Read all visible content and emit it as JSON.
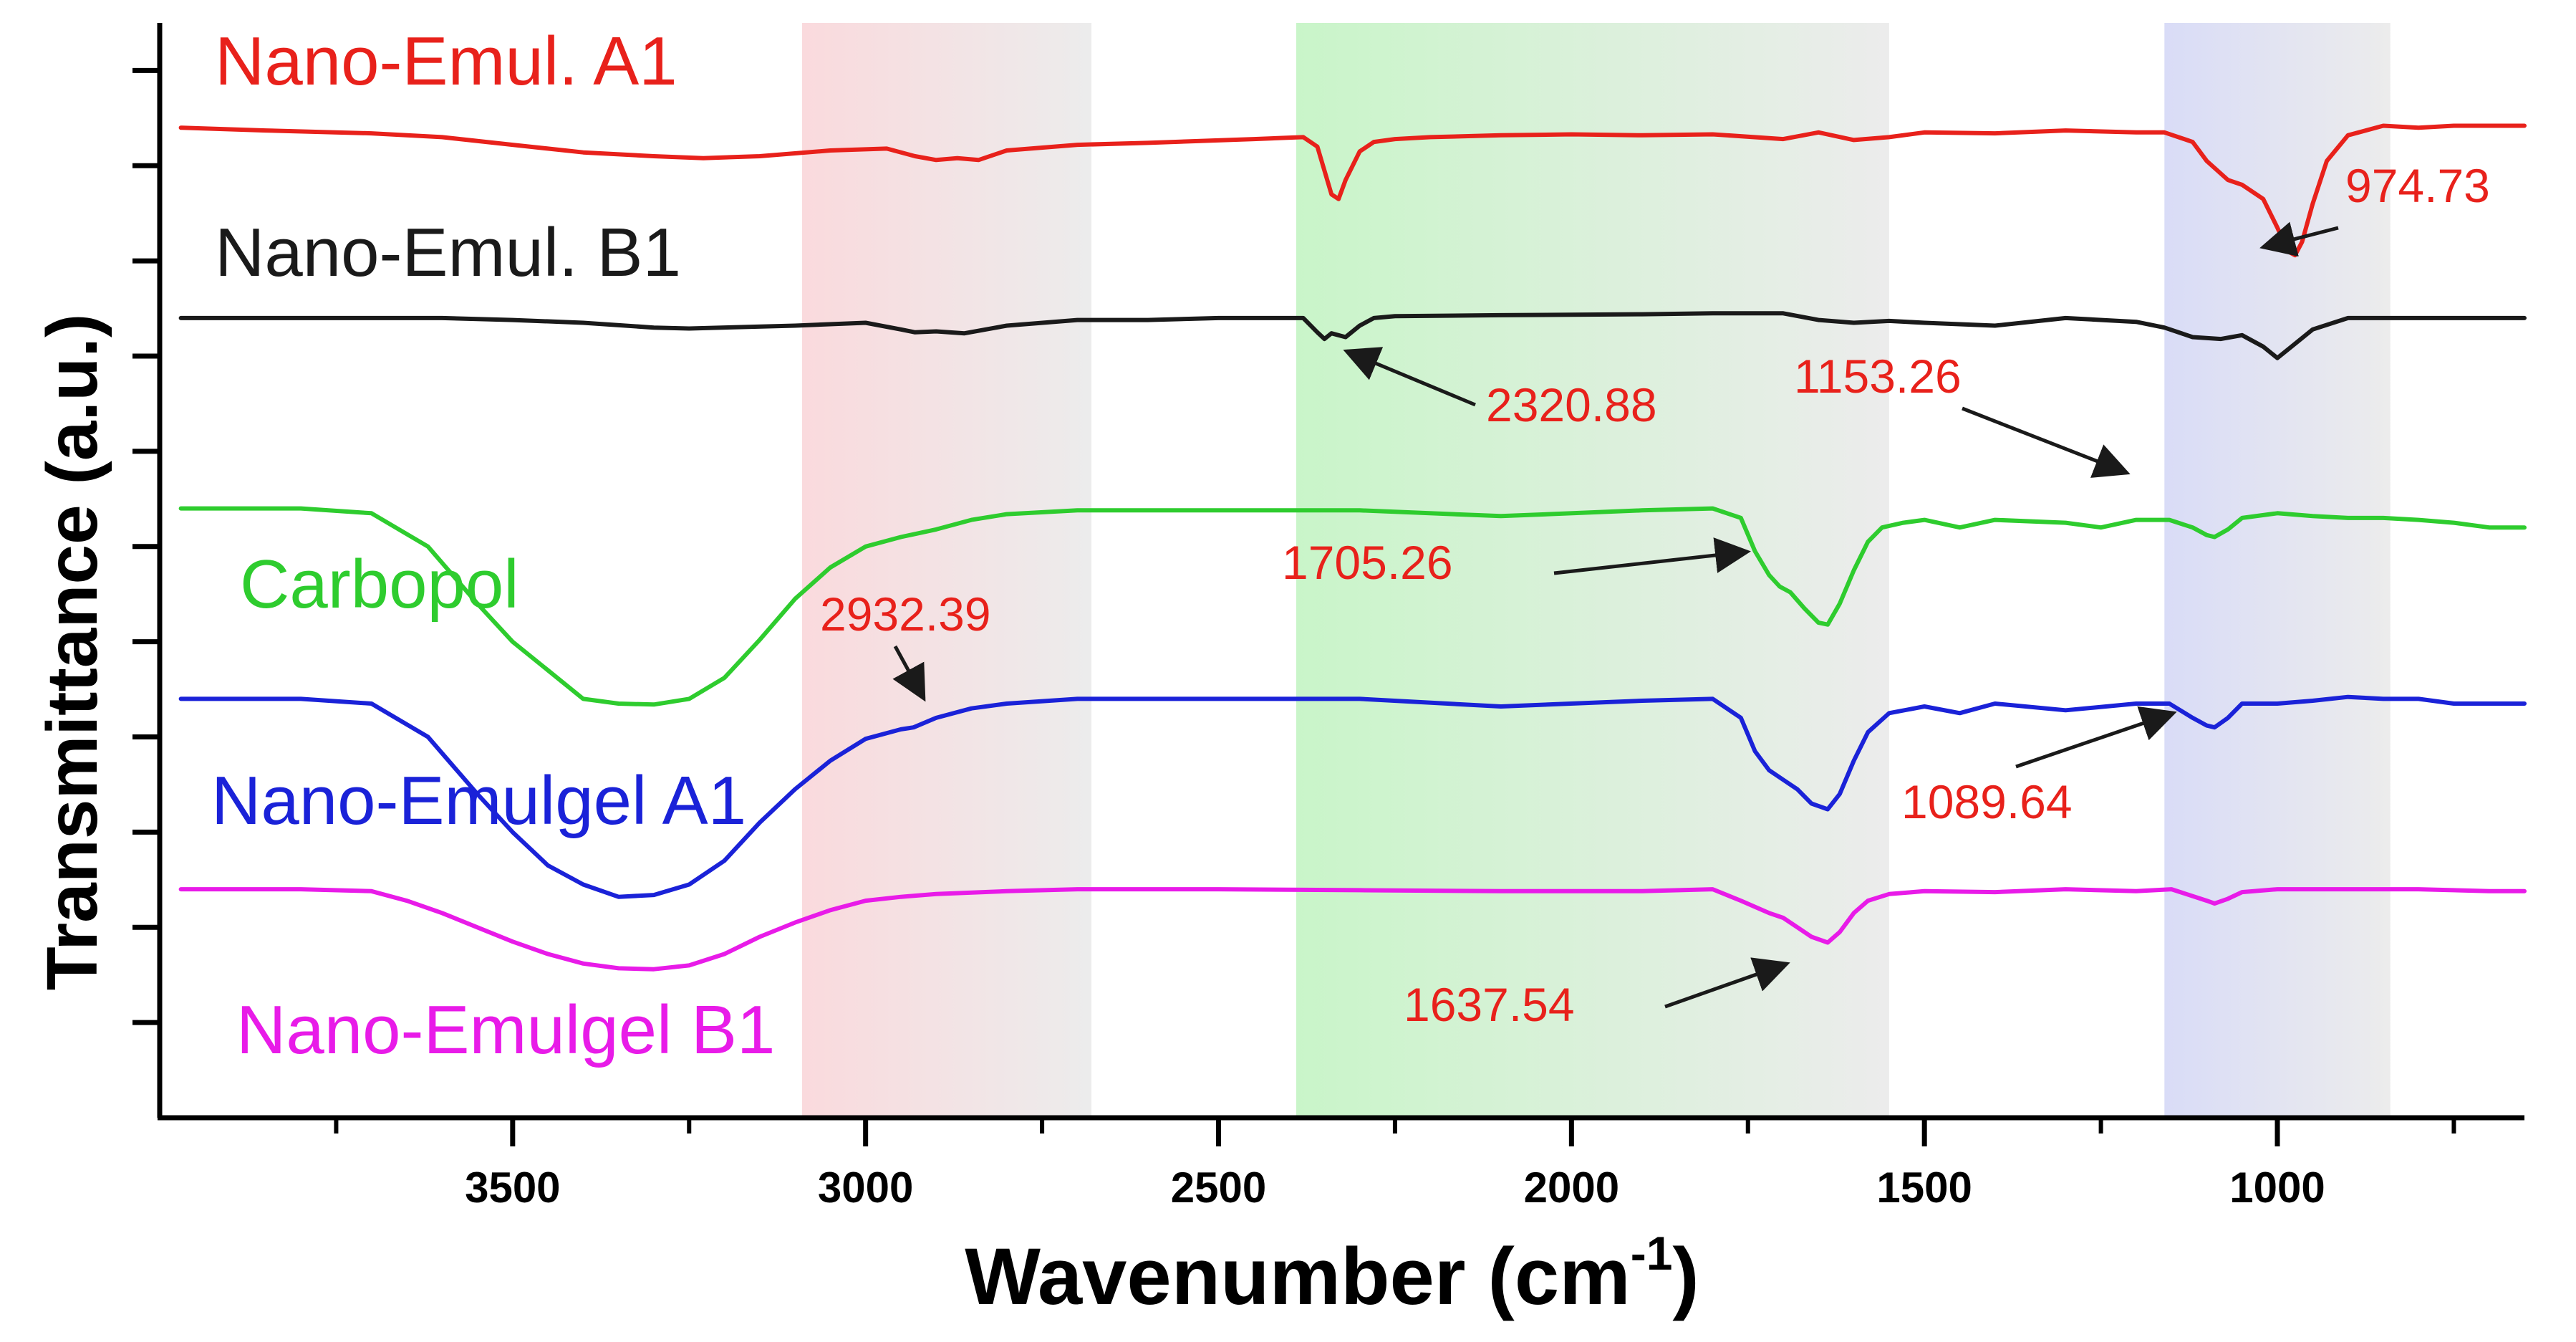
{
  "chart_data": {
    "type": "line",
    "title": "",
    "xlabel": "Wavenumber (cm",
    "xlabel_sup": "-1",
    "xlabel_close": ")",
    "ylabel": "Transmittance (a.u.)",
    "x_reversed": true,
    "xlim": [
      4000,
      650
    ],
    "xticks": [
      3500,
      3000,
      2500,
      2000,
      1500,
      1000
    ],
    "xtick_labels": [
      "3500",
      "3000",
      "2500",
      "2000",
      "1500",
      "1000"
    ],
    "y_ticks_labeled": false,
    "shaded_regions": [
      {
        "from": 3090,
        "to": 2680,
        "color_start": "#fadadd",
        "color_end": "#ececec"
      },
      {
        "from": 2390,
        "to": 1550,
        "color_start": "#c9f5c9",
        "color_end": "#ececec"
      },
      {
        "from": 1160,
        "to": 840,
        "color_start": "#d9dcf7",
        "color_end": "#ececec"
      }
    ],
    "series": [
      {
        "name": "Nano-Emul. A1",
        "color": "#e8211b",
        "offset": 10.4,
        "x": [
          3970,
          3850,
          3700,
          3600,
          3500,
          3400,
          3300,
          3230,
          3150,
          3050,
          2970,
          2930,
          2900,
          2870,
          2840,
          2800,
          2700,
          2600,
          2450,
          2380,
          2360,
          2340,
          2330,
          2320,
          2300,
          2280,
          2250,
          2200,
          2100,
          2000,
          1900,
          1800,
          1700,
          1650,
          1600,
          1550,
          1500,
          1400,
          1300,
          1200,
          1160,
          1120,
          1100,
          1070,
          1050,
          1020,
          1000,
          985,
          975,
          965,
          950,
          930,
          900,
          850,
          800,
          750,
          700,
          650
        ],
        "y": [
          0,
          -0.03,
          -0.06,
          -0.1,
          -0.18,
          -0.26,
          -0.3,
          -0.32,
          -0.3,
          -0.24,
          -0.22,
          -0.3,
          -0.34,
          -0.32,
          -0.34,
          -0.24,
          -0.18,
          -0.16,
          -0.12,
          -0.1,
          -0.2,
          -0.7,
          -0.75,
          -0.55,
          -0.25,
          -0.15,
          -0.12,
          -0.1,
          -0.08,
          -0.07,
          -0.08,
          -0.07,
          -0.12,
          -0.05,
          -0.13,
          -0.1,
          -0.05,
          -0.06,
          -0.03,
          -0.05,
          -0.05,
          -0.15,
          -0.35,
          -0.55,
          -0.6,
          -0.75,
          -1.05,
          -1.3,
          -1.34,
          -1.2,
          -0.8,
          -0.35,
          -0.08,
          0.02,
          0.0,
          0.02,
          0.02,
          0.02
        ]
      },
      {
        "name": "Nano-Emul. B1",
        "color": "#1a1a1a",
        "offset": 8.4,
        "x": [
          3970,
          3800,
          3600,
          3500,
          3400,
          3300,
          3250,
          3100,
          3000,
          2950,
          2930,
          2900,
          2860,
          2800,
          2700,
          2600,
          2500,
          2400,
          2380,
          2360,
          2350,
          2340,
          2320,
          2300,
          2280,
          2250,
          2100,
          1900,
          1800,
          1700,
          1650,
          1600,
          1550,
          1500,
          1400,
          1300,
          1200,
          1160,
          1120,
          1080,
          1050,
          1020,
          1000,
          980,
          950,
          900,
          800,
          700,
          650
        ],
        "y": [
          0,
          0.0,
          0.0,
          -0.02,
          -0.05,
          -0.1,
          -0.11,
          -0.08,
          -0.05,
          -0.12,
          -0.15,
          -0.14,
          -0.16,
          -0.08,
          -0.02,
          -0.02,
          0.0,
          0.0,
          0.0,
          -0.15,
          -0.22,
          -0.16,
          -0.2,
          -0.08,
          0.0,
          0.02,
          0.03,
          0.04,
          0.05,
          0.05,
          -0.02,
          -0.05,
          -0.03,
          -0.05,
          -0.08,
          0.0,
          -0.04,
          -0.1,
          -0.2,
          -0.22,
          -0.18,
          -0.3,
          -0.42,
          -0.3,
          -0.12,
          0.0,
          0.0,
          0.0,
          0.0
        ]
      },
      {
        "name": "Carbopol",
        "color": "#2ecc2e",
        "offset": 6.4,
        "x": [
          3970,
          3800,
          3700,
          3620,
          3550,
          3500,
          3450,
          3400,
          3350,
          3300,
          3250,
          3200,
          3150,
          3100,
          3050,
          3000,
          2950,
          2900,
          2850,
          2800,
          2700,
          2500,
          2300,
          2100,
          1900,
          1800,
          1760,
          1740,
          1720,
          1705,
          1690,
          1670,
          1650,
          1637,
          1620,
          1600,
          1580,
          1560,
          1530,
          1500,
          1450,
          1400,
          1300,
          1250,
          1200,
          1153,
          1120,
          1100,
          1089,
          1070,
          1050,
          1000,
          950,
          900,
          850,
          800,
          750,
          700,
          650
        ],
        "y": [
          0,
          0,
          -0.05,
          -0.4,
          -1.0,
          -1.4,
          -1.7,
          -2.0,
          -2.05,
          -2.06,
          -2.0,
          -1.78,
          -1.38,
          -0.95,
          -0.62,
          -0.4,
          -0.3,
          -0.22,
          -0.12,
          -0.06,
          -0.02,
          -0.02,
          -0.02,
          -0.08,
          -0.02,
          0.0,
          -0.1,
          -0.45,
          -0.7,
          -0.82,
          -0.88,
          -1.05,
          -1.2,
          -1.22,
          -1.0,
          -0.65,
          -0.35,
          -0.2,
          -0.15,
          -0.12,
          -0.2,
          -0.12,
          -0.15,
          -0.2,
          -0.12,
          -0.12,
          -0.2,
          -0.28,
          -0.3,
          -0.22,
          -0.1,
          -0.05,
          -0.08,
          -0.1,
          -0.1,
          -0.12,
          -0.15,
          -0.2,
          -0.2
        ]
      },
      {
        "name": "Nano-Emulgel A1",
        "color": "#1a22d8",
        "offset": 4.4,
        "x": [
          3970,
          3800,
          3700,
          3620,
          3550,
          3500,
          3450,
          3400,
          3350,
          3300,
          3250,
          3200,
          3150,
          3100,
          3050,
          3000,
          2950,
          2932,
          2900,
          2850,
          2800,
          2700,
          2500,
          2300,
          2100,
          1900,
          1800,
          1760,
          1740,
          1720,
          1700,
          1680,
          1660,
          1637,
          1620,
          1600,
          1580,
          1550,
          1500,
          1450,
          1400,
          1300,
          1200,
          1153,
          1120,
          1100,
          1089,
          1070,
          1050,
          1000,
          950,
          900,
          850,
          800,
          750,
          700,
          650
        ],
        "y": [
          0,
          0,
          -0.05,
          -0.4,
          -1.0,
          -1.4,
          -1.75,
          -1.95,
          -2.08,
          -2.06,
          -1.95,
          -1.7,
          -1.3,
          -0.95,
          -0.65,
          -0.42,
          -0.32,
          -0.3,
          -0.2,
          -0.1,
          -0.05,
          0.0,
          0.0,
          0.0,
          -0.08,
          -0.02,
          0.0,
          -0.2,
          -0.55,
          -0.75,
          -0.85,
          -0.95,
          -1.1,
          -1.16,
          -1.0,
          -0.65,
          -0.35,
          -0.15,
          -0.08,
          -0.15,
          -0.05,
          -0.12,
          -0.05,
          -0.05,
          -0.2,
          -0.28,
          -0.3,
          -0.2,
          -0.05,
          -0.05,
          -0.02,
          0.02,
          0.0,
          0.0,
          -0.05,
          -0.05,
          -0.05
        ]
      },
      {
        "name": "Nano-Emulgel B1",
        "color": "#e81be8",
        "offset": 2.4,
        "x": [
          3970,
          3800,
          3700,
          3650,
          3600,
          3550,
          3500,
          3450,
          3400,
          3350,
          3300,
          3250,
          3200,
          3150,
          3100,
          3050,
          3000,
          2950,
          2900,
          2800,
          2700,
          2500,
          2300,
          2100,
          1900,
          1800,
          1760,
          1720,
          1700,
          1680,
          1660,
          1637,
          1620,
          1600,
          1580,
          1550,
          1500,
          1400,
          1300,
          1200,
          1150,
          1100,
          1089,
          1070,
          1050,
          1000,
          900,
          800,
          700,
          650
        ],
        "y": [
          0,
          0,
          -0.02,
          -0.12,
          -0.25,
          -0.4,
          -0.55,
          -0.68,
          -0.78,
          -0.83,
          -0.84,
          -0.8,
          -0.68,
          -0.5,
          -0.35,
          -0.22,
          -0.12,
          -0.08,
          -0.05,
          -0.02,
          0.0,
          0.0,
          -0.01,
          -0.02,
          -0.02,
          0.0,
          -0.12,
          -0.25,
          -0.3,
          -0.4,
          -0.5,
          -0.56,
          -0.45,
          -0.25,
          -0.12,
          -0.05,
          -0.02,
          -0.03,
          0.0,
          -0.02,
          0.0,
          -0.12,
          -0.15,
          -0.1,
          -0.03,
          0.0,
          0.0,
          0.0,
          -0.02,
          -0.02
        ]
      }
    ],
    "annotations": [
      {
        "text": "974.73",
        "color": "#e8211b"
      },
      {
        "text": "2320.88",
        "color": "#e8211b"
      },
      {
        "text": "1153.26",
        "color": "#e8211b"
      },
      {
        "text": "1705.26",
        "color": "#e8211b"
      },
      {
        "text": "2932.39",
        "color": "#e8211b"
      },
      {
        "text": "1089.64",
        "color": "#e8211b"
      },
      {
        "text": "1637.54",
        "color": "#e8211b"
      }
    ]
  }
}
